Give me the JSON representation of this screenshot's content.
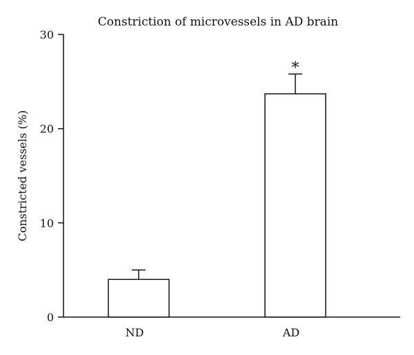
{
  "chart_data": {
    "type": "bar",
    "title": "Constriction of microvessels in AD brain",
    "xlabel": "",
    "ylabel": "Constricted vessels (%)",
    "ylim": [
      0,
      30
    ],
    "yticks": [
      0,
      10,
      20,
      30
    ],
    "categories": [
      "ND",
      "AD"
    ],
    "values": [
      4,
      23.7
    ],
    "errors": [
      1,
      2.1
    ],
    "annotations": [
      "",
      "*"
    ],
    "bar_fill": "#ffffff",
    "stroke_color": "#111111",
    "grid": false,
    "legend": "none"
  }
}
